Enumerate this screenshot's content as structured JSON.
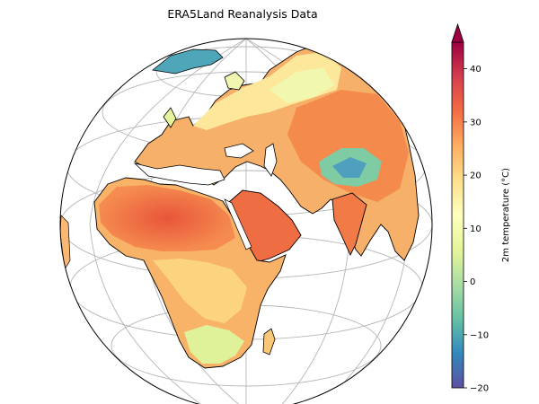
{
  "title": "ERA5Land Reanalysis Data",
  "colorbar": {
    "label": "2m temperature (°C)",
    "min": -20,
    "max": 45,
    "extend": "max",
    "ticks": [
      {
        "value": 40,
        "label": "40"
      },
      {
        "value": 30,
        "label": "30"
      },
      {
        "value": 20,
        "label": "20"
      },
      {
        "value": 10,
        "label": "10"
      },
      {
        "value": 0,
        "label": "0"
      },
      {
        "value": -10,
        "label": "−10"
      },
      {
        "value": -20,
        "label": "−20"
      }
    ],
    "colormap": "Spectral_r",
    "colors": [
      "#5e4fa2",
      "#3288bd",
      "#66c2a5",
      "#abdda4",
      "#e6f598",
      "#ffffbf",
      "#fee08b",
      "#fdae61",
      "#f46d43",
      "#d53e4f",
      "#9e0142"
    ]
  },
  "map": {
    "projection": "orthographic",
    "gridlines": true,
    "coastlines": true,
    "ocean_color": "#ffffff",
    "coastline_color": "#000000",
    "gridline_color": "#b0b0b0"
  }
}
